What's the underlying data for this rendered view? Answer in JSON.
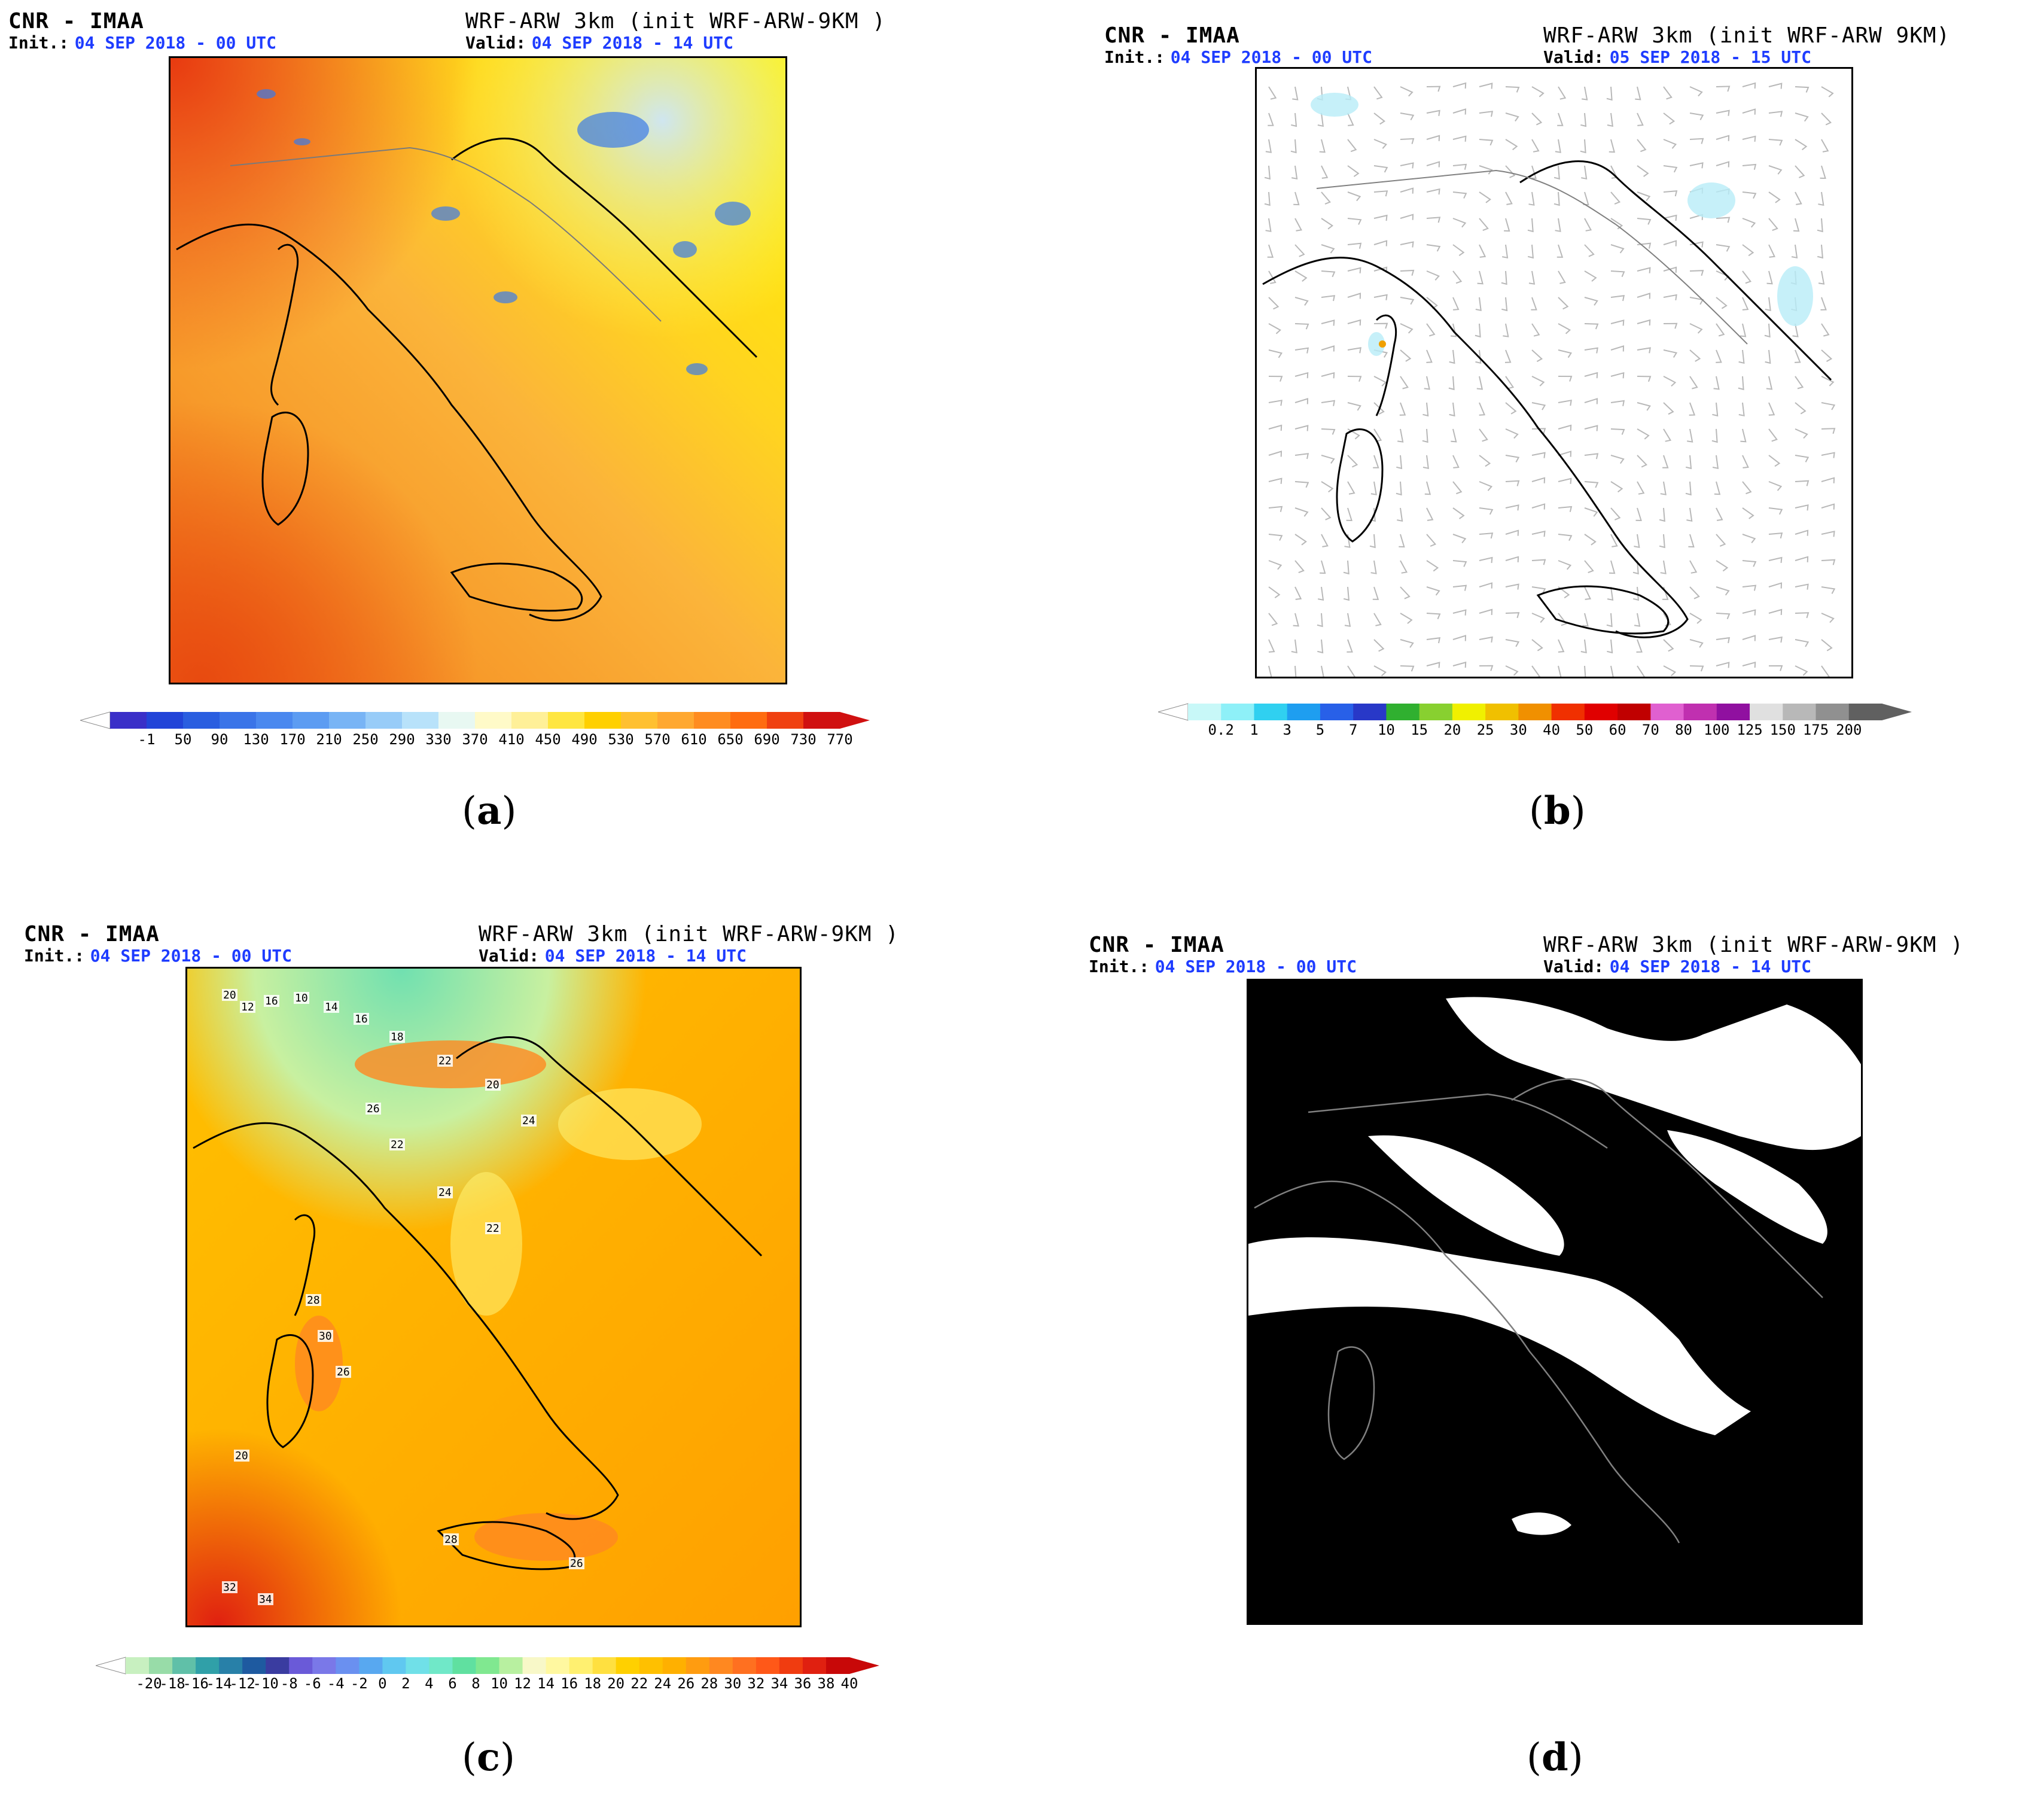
{
  "panels": [
    {
      "id": "a",
      "org": "CNR - IMAA",
      "init_label": "Init.:",
      "init_value": "04 SEP 2018 - 00 UTC",
      "model": "WRF-ARW 3km (init WRF-ARW-9KM )",
      "valid_label": "Valid:",
      "valid_value": "04 SEP 2018 - 14 UTC",
      "caption_letter": "a",
      "colorbar_ticks": [
        "-1",
        "50",
        "90",
        "130",
        "170",
        "210",
        "250",
        "290",
        "330",
        "370",
        "410",
        "450",
        "490",
        "530",
        "570",
        "610",
        "650",
        "690",
        "730",
        "770"
      ],
      "colorbar_colors": [
        "#3a2fc8",
        "#2244d8",
        "#2a5ee0",
        "#3a74e8",
        "#4a88ef",
        "#5c9cf2",
        "#78b4f5",
        "#98ccf8",
        "#b8e2fa",
        "#e8f8f2",
        "#fffac8",
        "#fff098",
        "#ffe640",
        "#ffd000",
        "#ffc030",
        "#ffa830",
        "#ff8c20",
        "#ff6c10",
        "#f04010",
        "#d01010"
      ]
    },
    {
      "id": "b",
      "org": "CNR - IMAA",
      "init_label": "Init.:",
      "init_value": "04 SEP 2018 - 00 UTC",
      "model": "WRF-ARW 3km (init WRF-ARW 9KM)",
      "valid_label": "Valid:",
      "valid_value": "05 SEP 2018 - 15 UTC",
      "caption_letter": "b",
      "colorbar_ticks": [
        "0.2",
        "1",
        "3",
        "5",
        "7",
        "10",
        "15",
        "20",
        "25",
        "30",
        "40",
        "50",
        "60",
        "70",
        "80",
        "100",
        "125",
        "150",
        "175",
        "200"
      ],
      "colorbar_colors": [
        "#c8f8f8",
        "#8ef0f8",
        "#30d0f0",
        "#1e9ef0",
        "#2860e8",
        "#2838c8",
        "#30b030",
        "#88d030",
        "#f0f000",
        "#f0c000",
        "#f09000",
        "#f03000",
        "#e00000",
        "#c00000",
        "#e060d0",
        "#c030b0",
        "#9010a0",
        "#e0e0e0",
        "#b8b8b8",
        "#909090",
        "#606060"
      ]
    },
    {
      "id": "c",
      "org": "CNR - IMAA",
      "init_label": "Init.:",
      "init_value": "04 SEP 2018 - 00 UTC",
      "model": "WRF-ARW 3km (init WRF-ARW-9KM )",
      "valid_label": "Valid:",
      "valid_value": "04 SEP 2018 - 14 UTC",
      "caption_letter": "c",
      "colorbar_ticks": [
        "-20",
        "-18",
        "-16",
        "-14",
        "-12",
        "-10",
        "-8",
        "-6",
        "-4",
        "-2",
        "0",
        "2",
        "4",
        "6",
        "8",
        "10",
        "12",
        "14",
        "16",
        "18",
        "20",
        "22",
        "24",
        "26",
        "28",
        "30",
        "32",
        "34",
        "36",
        "38",
        "40"
      ],
      "colorbar_colors": [
        "#c8f0c0",
        "#98dca8",
        "#60c0a8",
        "#30a0a8",
        "#2880a8",
        "#1e5aa0",
        "#3a3ca0",
        "#6a5ad8",
        "#7a78e8",
        "#6a90f0",
        "#58a8f0",
        "#60c8f0",
        "#70e0e8",
        "#70e8c8",
        "#60e0a0",
        "#80e890",
        "#b8f0a0",
        "#f8f8c8",
        "#fff8a0",
        "#fff070",
        "#ffe040",
        "#ffd000",
        "#ffc000",
        "#ffb000",
        "#ff9c10",
        "#ff8820",
        "#ff7020",
        "#ff5818",
        "#f03c10",
        "#e02010",
        "#c80808"
      ],
      "station_values": [
        "20",
        "12",
        "16",
        "10",
        "14",
        "16",
        "18",
        "22",
        "20",
        "24",
        "26",
        "22",
        "24",
        "22",
        "28",
        "30",
        "26",
        "28",
        "32",
        "34",
        "20",
        "26"
      ]
    },
    {
      "id": "d",
      "org": "CNR - IMAA",
      "init_label": "Init.:",
      "init_value": "04 SEP 2018 - 00 UTC",
      "model": "WRF-ARW 3km (init WRF-ARW-9KM )",
      "valid_label": "Valid:",
      "valid_value": "04 SEP 2018 - 14 UTC",
      "caption_letter": "d"
    }
  ]
}
